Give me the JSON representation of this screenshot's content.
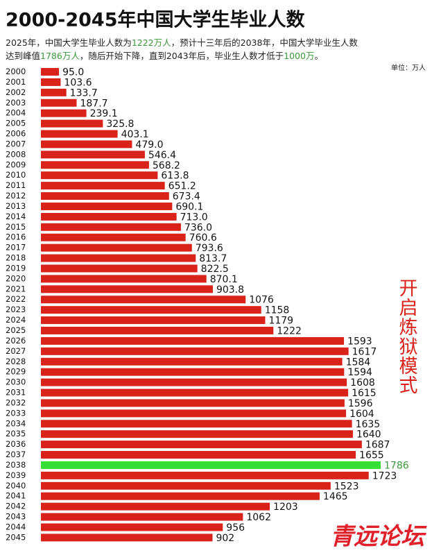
{
  "chart_data": {
    "type": "barh",
    "title": "2000-2045年中国大学生毕业人数",
    "subtitle": [
      [
        {
          "text": "2025年，中国大学生毕业人数为"
        },
        {
          "text": "1222万人",
          "highlight": true
        },
        {
          "text": "，预计十三年后的2038年，中国大学毕业生人数"
        }
      ],
      [
        {
          "text": "达到峰值"
        },
        {
          "text": "1786万人",
          "highlight": true
        },
        {
          "text": "，随后开始下降，直到2043年后，毕业生人数才低于"
        },
        {
          "text": "1000万",
          "highlight": true
        },
        {
          "text": "。"
        }
      ]
    ],
    "highlight_text_color": "#3a9a3a",
    "unit_label": "单位：万人",
    "annotation": "开启炼狱模式",
    "watermark": "青远论坛",
    "categories": [
      "2000",
      "2001",
      "2002",
      "2003",
      "2004",
      "2005",
      "2006",
      "2007",
      "2008",
      "2009",
      "2010",
      "2011",
      "2012",
      "2013",
      "2014",
      "2015",
      "2016",
      "2017",
      "2018",
      "2019",
      "2020",
      "2021",
      "2022",
      "2023",
      "2024",
      "2025",
      "2026",
      "2027",
      "2028",
      "2029",
      "2030",
      "2031",
      "2032",
      "2033",
      "2034",
      "2035",
      "2036",
      "2037",
      "2038",
      "2039",
      "2040",
      "2041",
      "2042",
      "2043",
      "2044",
      "2045"
    ],
    "values": [
      95.0,
      103.6,
      133.7,
      187.7,
      239.1,
      325.8,
      403.1,
      479.0,
      546.4,
      568.2,
      613.8,
      651.2,
      673.4,
      690.1,
      713.0,
      736.0,
      760.6,
      793.6,
      813.7,
      822.5,
      870.1,
      903.8,
      1076,
      1158,
      1179,
      1222,
      1593,
      1617,
      1584,
      1594,
      1608,
      1615,
      1596,
      1604,
      1635,
      1640,
      1687,
      1655,
      1786,
      1723,
      1523,
      1465,
      1203,
      1062,
      956,
      902
    ],
    "value_labels": [
      "95.0",
      "103.6",
      "133.7",
      "187.7",
      "239.1",
      "325.8",
      "403.1",
      "479.0",
      "546.4",
      "568.2",
      "613.8",
      "651.2",
      "673.4",
      "690.1",
      "713.0",
      "736.0",
      "760.6",
      "793.6",
      "813.7",
      "822.5",
      "870.1",
      "903.8",
      "1076",
      "1158",
      "1179",
      "1222",
      "1593",
      "1617",
      "1584",
      "1594",
      "1608",
      "1615",
      "1596",
      "1604",
      "1635",
      "1640",
      "1687",
      "1655",
      "1786",
      "1723",
      "1523",
      "1465",
      "1203",
      "1062",
      "956",
      "902"
    ],
    "color": "#d8221a",
    "highlight": {
      "category": "2038",
      "color": "#35e035"
    }
  }
}
